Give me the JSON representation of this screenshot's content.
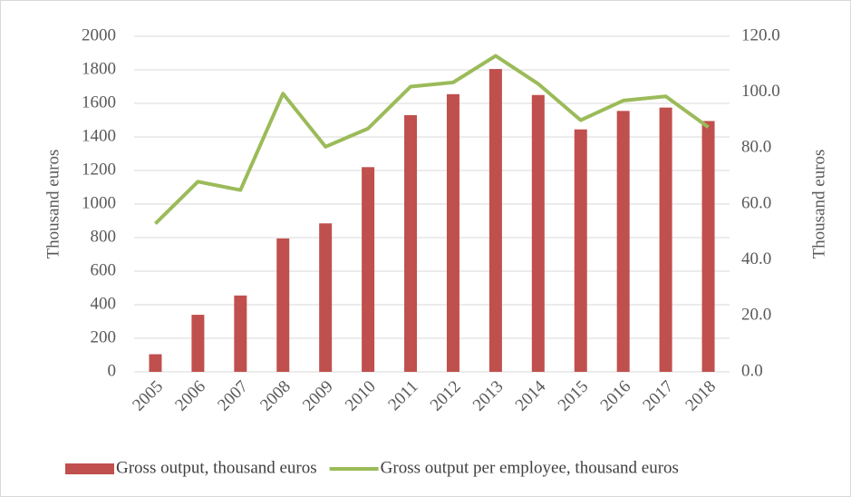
{
  "chart_data": {
    "type": "bar",
    "categories": [
      "2005",
      "2006",
      "2007",
      "2008",
      "2009",
      "2010",
      "2011",
      "2012",
      "2013",
      "2014",
      "2015",
      "2016",
      "2017",
      "2018"
    ],
    "series": [
      {
        "name": "Gross output, thousand euros",
        "type": "bar",
        "color": "#c0504d",
        "values": [
          105,
          340,
          455,
          795,
          885,
          1220,
          1530,
          1655,
          1805,
          1650,
          1445,
          1555,
          1575,
          1495
        ]
      },
      {
        "name": "Gross output per employee, thousand euros",
        "type": "line",
        "axis": "y2",
        "color": "#9bbb59",
        "values": [
          53,
          68,
          65,
          99.5,
          80.5,
          87,
          102,
          103.5,
          113,
          103,
          90,
          97,
          98.5,
          87.5
        ]
      }
    ],
    "ylabel": "Thousand euros",
    "y2label": "Thousand euros",
    "ylim": [
      0,
      2000
    ],
    "yticks": [
      0,
      200,
      400,
      600,
      800,
      1000,
      1200,
      1400,
      1600,
      1800,
      2000
    ],
    "y2lim": [
      0,
      120
    ],
    "y2ticks": [
      {
        "value": 0,
        "label": "0.0"
      },
      {
        "value": 20,
        "label": "20.0"
      },
      {
        "value": 40,
        "label": "40.0"
      },
      {
        "value": 60,
        "label": "60.0"
      },
      {
        "value": 80,
        "label": "80.0"
      },
      {
        "value": 100,
        "label": "100.0"
      },
      {
        "value": 120,
        "label": "120.0"
      }
    ],
    "grid": true,
    "legend": "bottom"
  }
}
